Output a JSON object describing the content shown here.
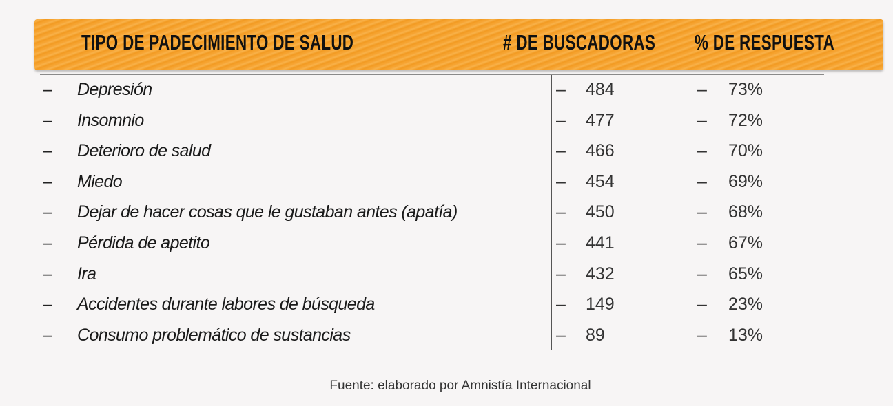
{
  "header": {
    "col1": "TIPO DE PADECIMIENTO DE SALUD",
    "col2": "# DE BUSCADORAS",
    "col3": "% DE RESPUESTA",
    "band_color": "#f5a030"
  },
  "rows": [
    {
      "dash": "–",
      "name": "Depresión",
      "count_dash": "–",
      "count": "484",
      "pct_dash": "–",
      "pct": "73%"
    },
    {
      "dash": "–",
      "name": "Insomnio",
      "count_dash": "–",
      "count": "477",
      "pct_dash": "–",
      "pct": "72%"
    },
    {
      "dash": "–",
      "name": "Deterioro de salud",
      "count_dash": "–",
      "count": "466",
      "pct_dash": "–",
      "pct": "70%"
    },
    {
      "dash": "–",
      "name": "Miedo",
      "count_dash": "–",
      "count": "454",
      "pct_dash": "–",
      "pct": "69%"
    },
    {
      "dash": "–",
      "name": "Dejar de hacer cosas que le gustaban antes (apatía)",
      "count_dash": "–",
      "count": "450",
      "pct_dash": "–",
      "pct": "68%"
    },
    {
      "dash": "–",
      "name": "Pérdida de apetito",
      "count_dash": "–",
      "count": "441",
      "pct_dash": "–",
      "pct": "67%"
    },
    {
      "dash": "–",
      "name": "Ira",
      "count_dash": "–",
      "count": "432",
      "pct_dash": "–",
      "pct": "65%"
    },
    {
      "dash": "–",
      "name": "Accidentes durante labores de búsqueda",
      "count_dash": "–",
      "count": "149",
      "pct_dash": "–",
      "pct": "23%"
    },
    {
      "dash": "–",
      "name": "Consumo problemático de sustancias",
      "count_dash": "–",
      "count": "89",
      "pct_dash": "–",
      "pct": "13%"
    }
  ],
  "footer": "Fuente: elaborado por Amnistía Internacional"
}
